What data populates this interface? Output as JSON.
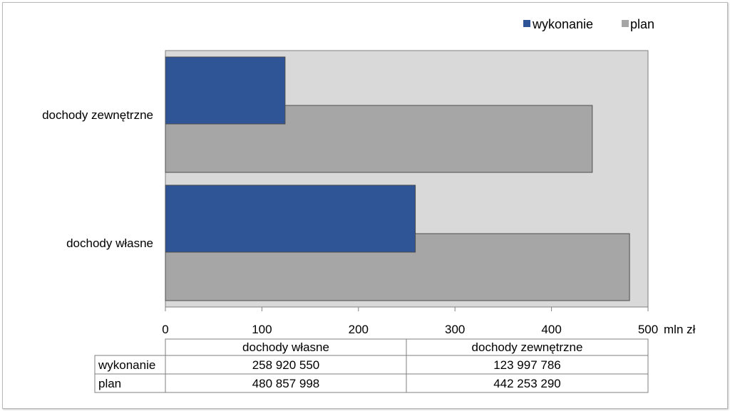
{
  "chart_data": {
    "type": "bar",
    "orientation": "horizontal",
    "categories": [
      "dochody własne",
      "dochody zewnętrzne"
    ],
    "series": [
      {
        "name": "wykonanie",
        "values": [
          258.92055,
          123.997786
        ],
        "color": "#2f5597"
      },
      {
        "name": "plan",
        "values": [
          480.857998,
          442.25329
        ],
        "color": "#a6a6a6"
      }
    ],
    "xlim": [
      0,
      500
    ],
    "xticks": [
      "0",
      "100",
      "200",
      "300",
      "400",
      "500"
    ],
    "xunit": "mln zł",
    "plot_background": "#d9d9d9",
    "grid": false,
    "legend_position": "top-right",
    "table": {
      "columns": [
        "dochody własne",
        "dochody zewnętrzne"
      ],
      "rows": [
        {
          "label": "wykonanie",
          "values": [
            "258 920 550",
            "123 997 786"
          ]
        },
        {
          "label": "plan",
          "values": [
            "480 857 998",
            "442 253 290"
          ]
        }
      ]
    }
  }
}
